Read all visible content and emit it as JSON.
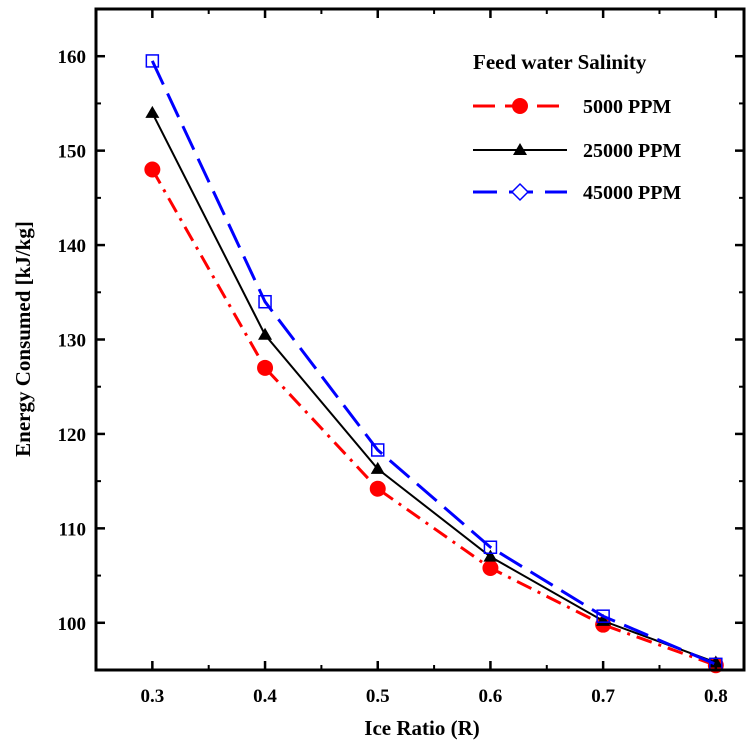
{
  "chart_data": {
    "type": "line",
    "xlabel": "Ice Ratio (R)",
    "ylabel": "Energy Consumed  [kJ/kg]",
    "xlim": [
      0.25,
      0.825
    ],
    "ylim": [
      95,
      165
    ],
    "x_ticks": [
      0.3,
      0.4,
      0.5,
      0.6,
      0.7,
      0.8
    ],
    "x_tick_labels": [
      "0.3",
      "0.4",
      "0.5",
      "0.6",
      "0.7",
      "0.8"
    ],
    "y_ticks": [
      100,
      110,
      120,
      130,
      140,
      150,
      160
    ],
    "y_tick_labels": [
      "100",
      "110",
      "120",
      "130",
      "140",
      "150",
      "160"
    ],
    "grid": false,
    "legend_title": "Feed water Salinity",
    "legend_position": "top-right",
    "x": [
      0.3,
      0.4,
      0.5,
      0.6,
      0.7,
      0.8
    ],
    "series": [
      {
        "name": "5000 PPM",
        "values": [
          148.0,
          127.0,
          114.2,
          105.8,
          99.8,
          95.5
        ],
        "color": "#ff0000",
        "marker": "circle",
        "line": "dash-dot"
      },
      {
        "name": "25000 PPM",
        "values": [
          154.0,
          130.5,
          116.3,
          107.0,
          100.2,
          95.8
        ],
        "color": "#000000",
        "marker": "triangle",
        "line": "solid"
      },
      {
        "name": "45000 PPM",
        "values": [
          159.5,
          134.0,
          118.3,
          108.0,
          100.7,
          95.6
        ],
        "color": "#0000ff",
        "marker": "open-square",
        "legend_marker": "open-diamond",
        "line": "long-dash"
      }
    ]
  }
}
